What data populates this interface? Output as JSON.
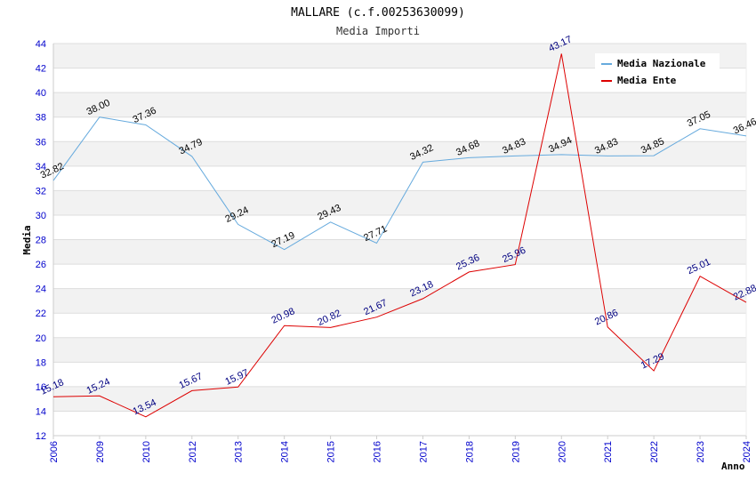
{
  "chart_data": {
    "type": "line",
    "title": "MALLARE (c.f.00253630099)",
    "subtitle": "Media Importi",
    "xlabel": "Anno",
    "ylabel": "Media",
    "ylim": [
      12,
      44
    ],
    "yticks": [
      12,
      14,
      16,
      18,
      20,
      22,
      24,
      26,
      28,
      30,
      32,
      34,
      36,
      38,
      40,
      42,
      44
    ],
    "categories": [
      "2006",
      "2009",
      "2010",
      "2012",
      "2013",
      "2014",
      "2015",
      "2016",
      "2017",
      "2018",
      "2019",
      "2020",
      "2021",
      "2022",
      "2023",
      "2024"
    ],
    "series": [
      {
        "name": "Media Nazionale",
        "color": "#66aadd",
        "values": [
          32.82,
          38.0,
          37.36,
          34.79,
          29.24,
          27.19,
          29.43,
          27.71,
          34.32,
          34.68,
          34.83,
          34.94,
          34.83,
          34.85,
          37.05,
          36.46
        ],
        "labels": [
          "32.82",
          "38.00",
          "37.36",
          "34.79",
          "29.24",
          "27.19",
          "29.43",
          "27.71",
          "34.32",
          "34.68",
          "34.83",
          "34.94",
          "34.83",
          "34.85",
          "37.05",
          "36.46"
        ]
      },
      {
        "name": "Media Ente",
        "color": "#dd0000",
        "values": [
          15.18,
          15.24,
          13.54,
          15.67,
          15.97,
          20.98,
          20.82,
          21.67,
          23.18,
          25.36,
          25.96,
          43.17,
          20.86,
          17.29,
          25.01,
          22.88
        ],
        "labels": [
          "15.18",
          "15.24",
          "13.54",
          "15.67",
          "15.97",
          "20.98",
          "20.82",
          "21.67",
          "23.18",
          "25.36",
          "25.96",
          "43.17",
          "20.86",
          "17.29",
          "25.01",
          "22.88"
        ]
      }
    ],
    "legend_position": "top-right",
    "grid": true
  }
}
